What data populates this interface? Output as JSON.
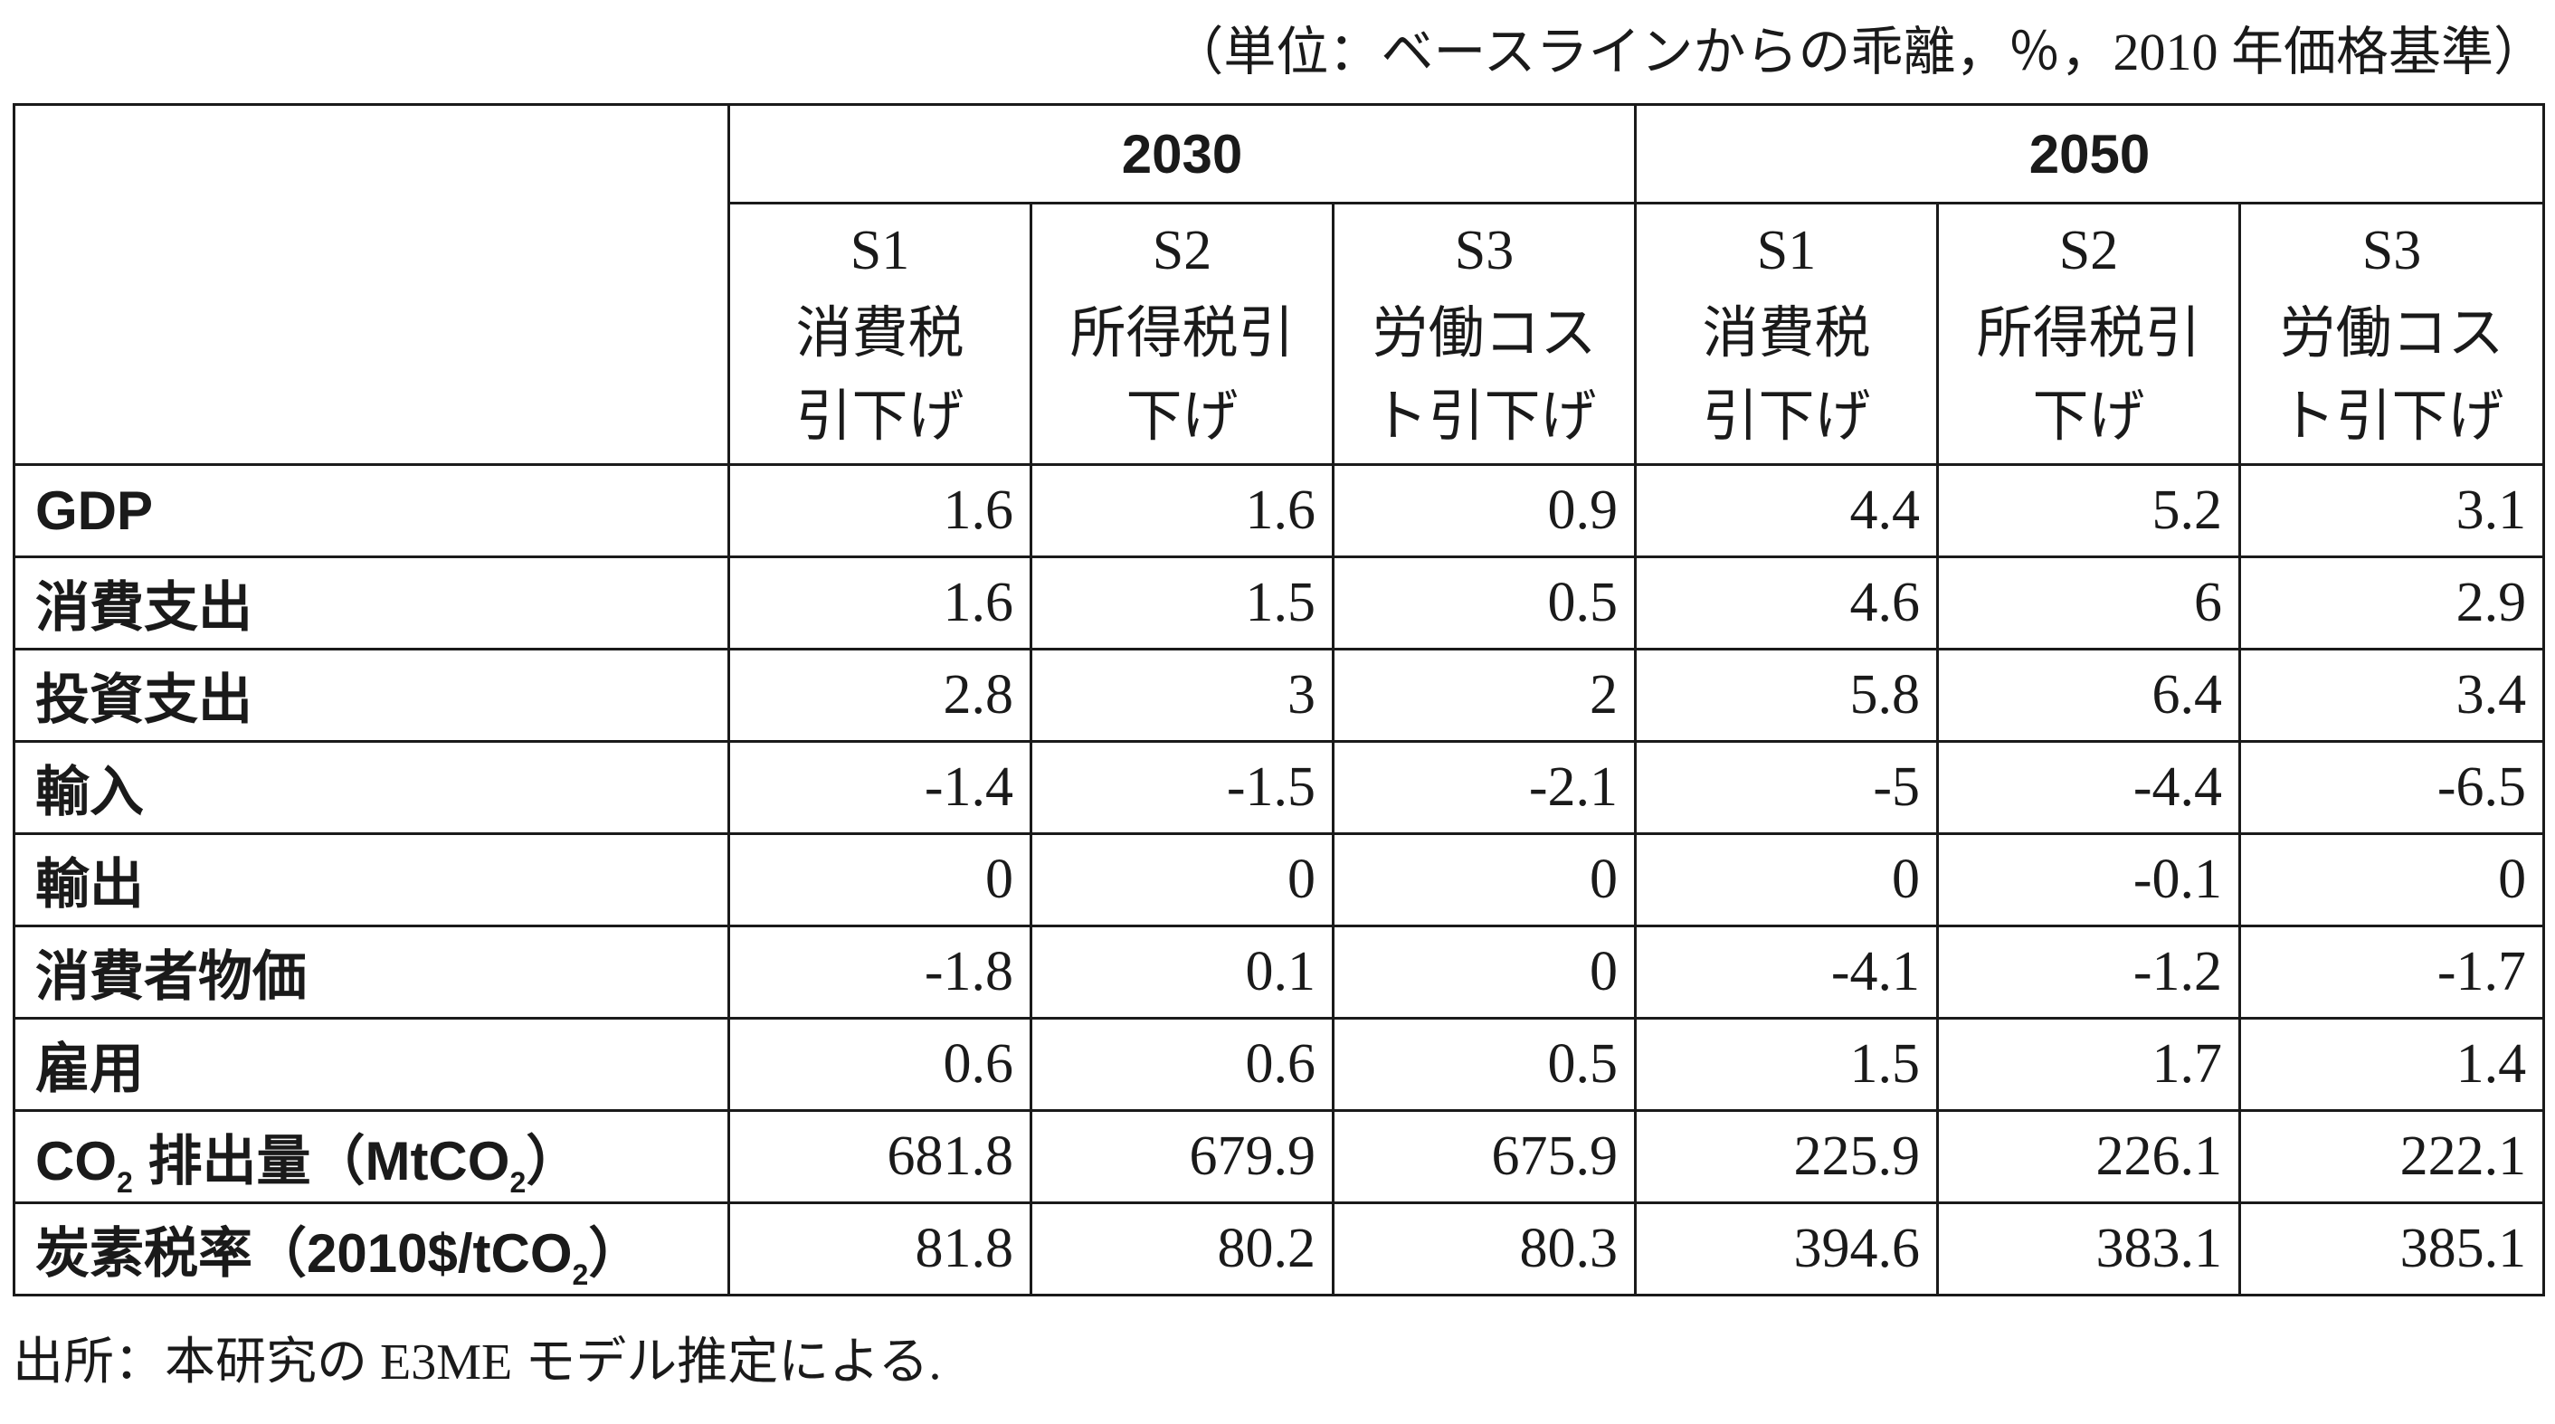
{
  "unit_note": "（単位：ベースラインからの乖離，％，2010 年価格基準）",
  "years": [
    "2030",
    "2050"
  ],
  "scenarios": [
    {
      "id": "S1",
      "line1": "消費税",
      "line2": "引下げ"
    },
    {
      "id": "S2",
      "line1": "所得税引",
      "line2": "下げ"
    },
    {
      "id": "S3",
      "line1": "労働コス",
      "line2": "ト引下げ"
    },
    {
      "id": "S1",
      "line1": "消費税",
      "line2": "引下げ"
    },
    {
      "id": "S2",
      "line1": "所得税引",
      "line2": "下げ"
    },
    {
      "id": "S3",
      "line1": "労働コス",
      "line2": "ト引下げ"
    }
  ],
  "rows": [
    {
      "label": "GDP",
      "values": [
        "1.6",
        "1.6",
        "0.9",
        "4.4",
        "5.2",
        "3.1"
      ]
    },
    {
      "label": "消費支出",
      "values": [
        "1.6",
        "1.5",
        "0.5",
        "4.6",
        "6",
        "2.9"
      ]
    },
    {
      "label": "投資支出",
      "values": [
        "2.8",
        "3",
        "2",
        "5.8",
        "6.4",
        "3.4"
      ]
    },
    {
      "label": "輸入",
      "values": [
        "-1.4",
        "-1.5",
        "-2.1",
        "-5",
        "-4.4",
        "-6.5"
      ]
    },
    {
      "label": "輸出",
      "values": [
        "0",
        "0",
        "0",
        "0",
        "-0.1",
        "0"
      ]
    },
    {
      "label": "消費者物価",
      "values": [
        "-1.8",
        "0.1",
        "0",
        "-4.1",
        "-1.2",
        "-1.7"
      ]
    },
    {
      "label": "雇用",
      "values": [
        "0.6",
        "0.6",
        "0.5",
        "1.5",
        "1.7",
        "1.4"
      ]
    },
    {
      "label_parts": [
        "CO",
        "2",
        " 排出量（MtCO",
        "2",
        "）"
      ],
      "values": [
        "681.8",
        "679.9",
        "675.9",
        "225.9",
        "226.1",
        "222.1"
      ]
    },
    {
      "label_parts": [
        "炭素税率（2010$/tCO",
        "2",
        "）"
      ],
      "values": [
        "81.8",
        "80.2",
        "80.3",
        "394.6",
        "383.1",
        "385.1"
      ]
    }
  ],
  "source_note": "出所：本研究の E3ME モデル推定による."
}
